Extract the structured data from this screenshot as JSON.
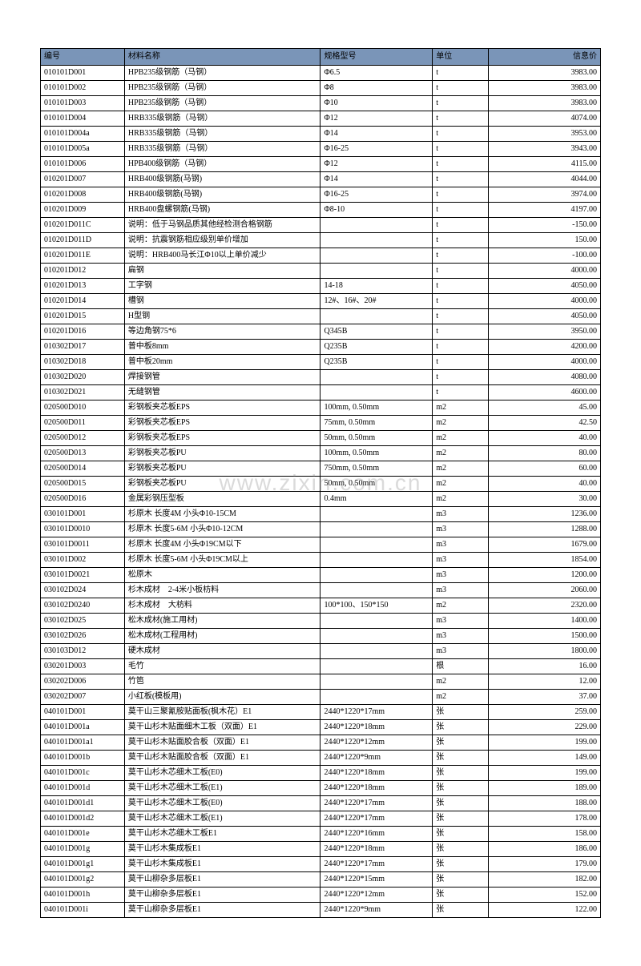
{
  "watermark": "www.zixin.com.cn",
  "table": {
    "columns": [
      "编号",
      "材料名称",
      "规格型号",
      "单位",
      "信息价"
    ],
    "header_bg": "#7a95b8",
    "border_color": "#000000",
    "font_size": 10,
    "col_widths_pct": [
      15,
      35,
      20,
      10,
      20
    ],
    "col_align": [
      "left",
      "left",
      "left",
      "left",
      "right"
    ],
    "rows": [
      [
        "010101D001",
        "HPB235级钢筋（马钢）",
        "Φ6.5",
        "t",
        "3983.00"
      ],
      [
        "010101D002",
        "HPB235级钢筋（马钢）",
        "Φ8",
        "t",
        "3983.00"
      ],
      [
        "010101D003",
        "HPB235级钢筋（马钢）",
        "Φ10",
        "t",
        "3983.00"
      ],
      [
        "010101D004",
        "HRB335级钢筋（马钢）",
        "Φ12",
        "t",
        "4074.00"
      ],
      [
        "010101D004a",
        "HRB335级钢筋（马钢）",
        "Φ14",
        "t",
        "3953.00"
      ],
      [
        "010101D005a",
        "HRB335级钢筋（马钢）",
        "Φ16-25",
        "t",
        "3943.00"
      ],
      [
        "010101D006",
        "HPB400级钢筋（马钢）",
        "Φ12",
        "t",
        "4115.00"
      ],
      [
        "010201D007",
        "HRB400级钢筋(马钢)",
        "Φ14",
        "t",
        "4044.00"
      ],
      [
        "010201D008",
        "HRB400级钢筋(马钢)",
        "Φ16-25",
        "t",
        "3974.00"
      ],
      [
        "010201D009",
        "HRB400盘螺钢筋(马钢)",
        "Φ8-10",
        "t",
        "4197.00"
      ],
      [
        "010201D011C",
        "说明：低于马钢品质其他经检测合格钢筋",
        "",
        "t",
        "-150.00"
      ],
      [
        "010201D011D",
        "说明：抗震钢筋相应级别单价增加",
        "",
        "t",
        "150.00"
      ],
      [
        "010201D011E",
        "说明：HRB400马长江Φ10以上单价减少",
        "",
        "t",
        "-100.00"
      ],
      [
        "010201D012",
        "扁钢",
        "",
        "t",
        "4000.00"
      ],
      [
        "010201D013",
        "工字钢",
        "14-18",
        "t",
        "4050.00"
      ],
      [
        "010201D014",
        "槽钢",
        "12#、16#、20#",
        "t",
        "4000.00"
      ],
      [
        "010201D015",
        "H型钢",
        "",
        "t",
        "4050.00"
      ],
      [
        "010201D016",
        "等边角钢75*6",
        "Q345B",
        "t",
        "3950.00"
      ],
      [
        "010302D017",
        "普中板8mm",
        "Q235B",
        "t",
        "4200.00"
      ],
      [
        "010302D018",
        "普中板20mm",
        "Q235B",
        "t",
        "4000.00"
      ],
      [
        "010302D020",
        "焊接钢管",
        "",
        "t",
        "4080.00"
      ],
      [
        "010302D021",
        "无缝钢管",
        "",
        "t",
        "4600.00"
      ],
      [
        "020500D010",
        "彩钢板夹芯板EPS",
        "100mm, 0.50mm",
        "m2",
        "45.00"
      ],
      [
        "020500D011",
        "彩钢板夹芯板EPS",
        "75mm, 0.50mm",
        "m2",
        "42.50"
      ],
      [
        "020500D012",
        "彩钢板夹芯板EPS",
        "50mm, 0.50mm",
        "m2",
        "40.00"
      ],
      [
        "020500D013",
        "彩钢板夹芯板PU",
        "100mm, 0.50mm",
        "m2",
        "80.00"
      ],
      [
        "020500D014",
        "彩钢板夹芯板PU",
        "750mm, 0.50mm",
        "m2",
        "60.00"
      ],
      [
        "020500D015",
        "彩钢板夹芯板PU",
        "50mm, 0.50mm",
        "m2",
        "40.00"
      ],
      [
        "020500D016",
        "金属彩钢压型板",
        "0.4mm",
        "m2",
        "30.00"
      ],
      [
        "030101D001",
        "杉原木 长度4M 小头Φ10-15CM",
        "",
        "m3",
        "1236.00"
      ],
      [
        "030101D0010",
        "杉原木 长度5-6M 小头Φ10-12CM",
        "",
        "m3",
        "1288.00"
      ],
      [
        "030101D0011",
        "杉原木 长度4M 小头Φ19CM以下",
        "",
        "m3",
        "1679.00"
      ],
      [
        "030101D002",
        "杉原木 长度5-6M 小头Φ19CM以上",
        "",
        "m3",
        "1854.00"
      ],
      [
        "030101D0021",
        "松原木",
        "",
        "m3",
        "1200.00"
      ],
      [
        "030102D024",
        "杉木成材　2-4米小板枋料",
        "",
        "m3",
        "2060.00"
      ],
      [
        "030102D0240",
        "杉木成材　大枋料",
        "100*100、150*150",
        "m2",
        "2320.00"
      ],
      [
        "030102D025",
        "松木成材(施工用材)",
        "",
        "m3",
        "1400.00"
      ],
      [
        "030102D026",
        "松木成材(工程用材)",
        "",
        "m3",
        "1500.00"
      ],
      [
        "030103D012",
        "硬木成材",
        "",
        "m3",
        "1800.00"
      ],
      [
        "030201D003",
        "毛竹",
        "",
        "根",
        "16.00"
      ],
      [
        "030202D006",
        "竹笆",
        "",
        "m2",
        "12.00"
      ],
      [
        "030202D007",
        "小红板(模板用)",
        "",
        "m2",
        "37.00"
      ],
      [
        "040101D001",
        "莫干山三聚氰胺贴面板(枫木花）E1",
        "2440*1220*17mm",
        "张",
        "259.00"
      ],
      [
        "040101D001a",
        "莫干山杉木贴面细木工板（双面）E1",
        "2440*1220*18mm",
        "张",
        "229.00"
      ],
      [
        "040101D001a1",
        "莫干山杉木贴面胶合板（双面）E1",
        "2440*1220*12mm",
        "张",
        "199.00"
      ],
      [
        "040101D001b",
        "莫干山杉木贴面胶合板（双面）E1",
        "2440*1220*9mm",
        "张",
        "149.00"
      ],
      [
        "040101D001c",
        "莫干山杉木芯细木工板(E0)",
        "2440*1220*18mm",
        "张",
        "199.00"
      ],
      [
        "040101D001d",
        "莫干山杉木芯细木工板(E1)",
        "2440*1220*18mm",
        "张",
        "189.00"
      ],
      [
        "040101D001d1",
        "莫干山杉木芯细木工板(E0)",
        "2440*1220*17mm",
        "张",
        "188.00"
      ],
      [
        "040101D001d2",
        "莫干山杉木芯细木工板(E1)",
        "2440*1220*17mm",
        "张",
        "178.00"
      ],
      [
        "040101D001e",
        "莫干山杉木芯细木工板E1",
        "2440*1220*16mm",
        "张",
        "158.00"
      ],
      [
        "040101D001g",
        "莫干山杉木集成板E1",
        "2440*1220*18mm",
        "张",
        "186.00"
      ],
      [
        "040101D001g1",
        "莫干山杉木集成板E1",
        "2440*1220*17mm",
        "张",
        "179.00"
      ],
      [
        "040101D001g2",
        "莫干山柳杂多层板E1",
        "2440*1220*15mm",
        "张",
        "182.00"
      ],
      [
        "040101D001h",
        "莫干山柳杂多层板E1",
        "2440*1220*12mm",
        "张",
        "152.00"
      ],
      [
        "040101D001i",
        "莫干山柳杂多层板E1",
        "2440*1220*9mm",
        "张",
        "122.00"
      ]
    ]
  }
}
